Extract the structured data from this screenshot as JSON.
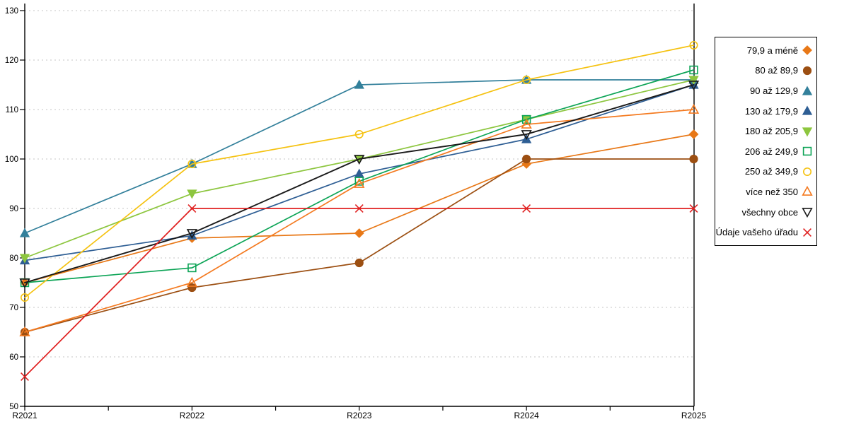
{
  "chart_data": {
    "type": "line",
    "title": "",
    "xlabel": "",
    "ylabel": "",
    "categories": [
      "R2021",
      "R2022",
      "R2023",
      "R2024",
      "R2025"
    ],
    "ylim": [
      50,
      130
    ],
    "yticks": [
      50,
      60,
      70,
      80,
      90,
      100,
      110,
      120,
      130
    ],
    "grid": "horizontal-dashed",
    "legend_position": "right",
    "series": [
      {
        "name": "79,9 a méně",
        "marker": "diamond",
        "fill": "filled",
        "color": "#E87817",
        "values": [
          75,
          84,
          85,
          99,
          105
        ]
      },
      {
        "name": "80 až 89,9",
        "marker": "circle",
        "fill": "filled",
        "color": "#9C4F12",
        "values": [
          65,
          74,
          79,
          100,
          100
        ]
      },
      {
        "name": "90 až 129,9",
        "marker": "triangle-up",
        "fill": "filled",
        "color": "#33809B",
        "values": [
          85,
          99,
          115,
          116,
          116
        ]
      },
      {
        "name": "130 až 179,9",
        "marker": "triangle-up",
        "fill": "filled",
        "color": "#2E5E94",
        "values": [
          79.5,
          84.5,
          97,
          104,
          115
        ]
      },
      {
        "name": "180 až 205,9",
        "marker": "triangle-down",
        "fill": "filled",
        "color": "#8DC63F",
        "values": [
          80,
          93,
          100,
          108,
          116
        ]
      },
      {
        "name": "206 až 249,9",
        "marker": "square",
        "fill": "open",
        "color": "#0CA456",
        "values": [
          75,
          78,
          95.5,
          108,
          118
        ]
      },
      {
        "name": "250 až 349,9",
        "marker": "circle",
        "fill": "open",
        "color": "#F5C211",
        "values": [
          72,
          99,
          105,
          116,
          123
        ]
      },
      {
        "name": "více než 350",
        "marker": "triangle-up",
        "fill": "open",
        "color": "#F47A20",
        "values": [
          65,
          75,
          95,
          107,
          110
        ]
      },
      {
        "name": "všechny obce",
        "marker": "triangle-down",
        "fill": "open",
        "color": "#1A1A1A",
        "values": [
          75,
          85,
          100,
          105,
          115
        ]
      },
      {
        "name": "Údaje vašeho úřadu",
        "marker": "x",
        "fill": "open",
        "color": "#E02020",
        "values": [
          56,
          90,
          90,
          90,
          90
        ]
      }
    ]
  }
}
